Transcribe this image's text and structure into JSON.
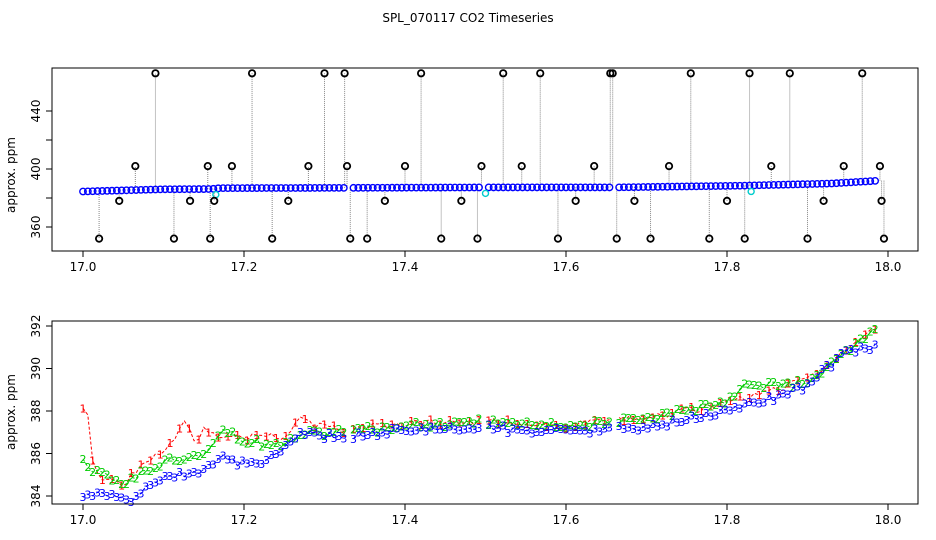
{
  "figure": {
    "title": "SPL_070117  CO2 Timeseries"
  },
  "chart_data": [
    {
      "type": "scatter",
      "title": "SPL_070117  CO2 Timeseries",
      "xlabel": "",
      "ylabel": "approx. ppm",
      "xlim": [
        17.0,
        18.0
      ],
      "ylim": [
        346,
        466
      ],
      "x_ticks": [
        17.0,
        17.2,
        17.4,
        17.6,
        17.8,
        18.0
      ],
      "x_tick_labels": [
        "17.0",
        "17.2",
        "17.4",
        "17.6",
        "17.8",
        "18.0"
      ],
      "y_ticks": [
        360,
        380,
        400,
        420,
        440
      ],
      "y_tick_labels": [
        "360",
        "",
        "400",
        "",
        "440"
      ],
      "grid": false,
      "series": [
        {
          "name": "",
          "color": "#0000ff",
          "baseline": [
            {
              "x": 17.0,
              "y": 384.5
            },
            {
              "x": 17.1,
              "y": 386.0
            },
            {
              "x": 17.16,
              "y": 386.2
            },
            {
              "x": 17.17,
              "y": 386.8
            },
            {
              "x": 17.33,
              "y": 387.0
            },
            {
              "x": 17.5,
              "y": 387.3
            },
            {
              "x": 17.66,
              "y": 387.3
            },
            {
              "x": 17.82,
              "y": 388.5
            },
            {
              "x": 17.93,
              "y": 390.0
            },
            {
              "x": 17.99,
              "y": 392.0
            }
          ]
        },
        {
          "name": "",
          "color": "#000000",
          "outliers_x": [
            17.02,
            17.045,
            17.065,
            17.09,
            17.113,
            17.133,
            17.155,
            17.158,
            17.163,
            17.185,
            17.21,
            17.235,
            17.255,
            17.28,
            17.3,
            17.325,
            17.328,
            17.332,
            17.353,
            17.375,
            17.4,
            17.42,
            17.445,
            17.47,
            17.49,
            17.495,
            17.522,
            17.545,
            17.568,
            17.59,
            17.612,
            17.635,
            17.655,
            17.658,
            17.663,
            17.685,
            17.705,
            17.728,
            17.755,
            17.778,
            17.8,
            17.822,
            17.828,
            17.855,
            17.878,
            17.9,
            17.92,
            17.945,
            17.968,
            17.99,
            17.992,
            17.995
          ],
          "outliers_y": [
            352,
            378,
            402,
            466,
            352,
            378,
            402,
            352,
            378,
            402,
            466,
            352,
            378,
            402,
            466,
            466,
            402,
            352,
            352,
            378,
            402,
            466,
            352,
            378,
            352,
            402,
            466,
            402,
            466,
            352,
            378,
            402,
            466,
            466,
            352,
            378,
            352,
            402,
            466,
            352,
            378,
            352,
            466,
            402,
            466,
            352,
            378,
            402,
            466,
            402,
            378,
            352
          ]
        }
      ]
    },
    {
      "type": "scatter",
      "title": "",
      "xlabel": "",
      "ylabel": "approx. ppm",
      "xlim": [
        17.0,
        18.0
      ],
      "ylim": [
        383.3,
        392.4
      ],
      "x_ticks": [
        17.0,
        17.2,
        17.4,
        17.6,
        17.8,
        18.0
      ],
      "x_tick_labels": [
        "17.0",
        "17.2",
        "17.4",
        "17.6",
        "17.8",
        "18.0"
      ],
      "y_ticks": [
        384,
        386,
        388,
        390,
        392
      ],
      "y_tick_labels": [
        "384",
        "386",
        "388",
        "390",
        "392"
      ],
      "grid": false,
      "series": [
        {
          "name": "",
          "marker": "1",
          "color": "#ff0000",
          "points": [
            {
              "x": 17.005,
              "y": 388.3
            },
            {
              "x": 17.01,
              "y": 385.8
            },
            {
              "x": 17.02,
              "y": 384.9
            },
            {
              "x": 17.05,
              "y": 384.6
            },
            {
              "x": 17.1,
              "y": 386.2
            },
            {
              "x": 17.115,
              "y": 386.8
            },
            {
              "x": 17.125,
              "y": 387.8
            },
            {
              "x": 17.13,
              "y": 387.3
            },
            {
              "x": 17.14,
              "y": 386.5
            },
            {
              "x": 17.15,
              "y": 387.2
            },
            {
              "x": 17.18,
              "y": 386.7
            },
            {
              "x": 17.22,
              "y": 386.8
            },
            {
              "x": 17.25,
              "y": 386.8
            },
            {
              "x": 17.27,
              "y": 387.6
            },
            {
              "x": 17.29,
              "y": 387.3
            },
            {
              "x": 17.32,
              "y": 387.1
            },
            {
              "x": 17.4,
              "y": 387.4
            },
            {
              "x": 17.5,
              "y": 387.5
            },
            {
              "x": 17.6,
              "y": 387.3
            },
            {
              "x": 17.7,
              "y": 387.7
            },
            {
              "x": 17.78,
              "y": 388.2
            },
            {
              "x": 17.85,
              "y": 388.9
            },
            {
              "x": 17.9,
              "y": 389.5
            },
            {
              "x": 17.95,
              "y": 390.9
            },
            {
              "x": 17.99,
              "y": 392.0
            }
          ]
        },
        {
          "name": "",
          "marker": "2",
          "color": "#00cc00",
          "points": [
            {
              "x": 17.0,
              "y": 385.6
            },
            {
              "x": 17.02,
              "y": 385.0
            },
            {
              "x": 17.05,
              "y": 384.6
            },
            {
              "x": 17.1,
              "y": 385.6
            },
            {
              "x": 17.15,
              "y": 386.1
            },
            {
              "x": 17.175,
              "y": 387.2
            },
            {
              "x": 17.2,
              "y": 386.6
            },
            {
              "x": 17.24,
              "y": 386.4
            },
            {
              "x": 17.27,
              "y": 387.0
            },
            {
              "x": 17.32,
              "y": 387.0
            },
            {
              "x": 17.4,
              "y": 387.3
            },
            {
              "x": 17.5,
              "y": 387.5
            },
            {
              "x": 17.6,
              "y": 387.3
            },
            {
              "x": 17.7,
              "y": 387.6
            },
            {
              "x": 17.8,
              "y": 388.5
            },
            {
              "x": 17.82,
              "y": 389.2
            },
            {
              "x": 17.9,
              "y": 389.3
            },
            {
              "x": 17.95,
              "y": 390.8
            },
            {
              "x": 17.99,
              "y": 392.0
            }
          ]
        },
        {
          "name": "",
          "marker": "3",
          "color": "#0000ff",
          "points": [
            {
              "x": 17.0,
              "y": 384.1
            },
            {
              "x": 17.04,
              "y": 384.0
            },
            {
              "x": 17.06,
              "y": 383.8
            },
            {
              "x": 17.1,
              "y": 384.9
            },
            {
              "x": 17.15,
              "y": 385.2
            },
            {
              "x": 17.17,
              "y": 385.8
            },
            {
              "x": 17.2,
              "y": 385.5
            },
            {
              "x": 17.24,
              "y": 385.8
            },
            {
              "x": 17.27,
              "y": 386.9
            },
            {
              "x": 17.32,
              "y": 386.8
            },
            {
              "x": 17.4,
              "y": 387.1
            },
            {
              "x": 17.5,
              "y": 387.2
            },
            {
              "x": 17.6,
              "y": 387.0
            },
            {
              "x": 17.7,
              "y": 387.2
            },
            {
              "x": 17.8,
              "y": 388.0
            },
            {
              "x": 17.85,
              "y": 388.5
            },
            {
              "x": 17.9,
              "y": 389.2
            },
            {
              "x": 17.95,
              "y": 390.9
            },
            {
              "x": 17.99,
              "y": 391.0
            }
          ]
        }
      ]
    }
  ]
}
